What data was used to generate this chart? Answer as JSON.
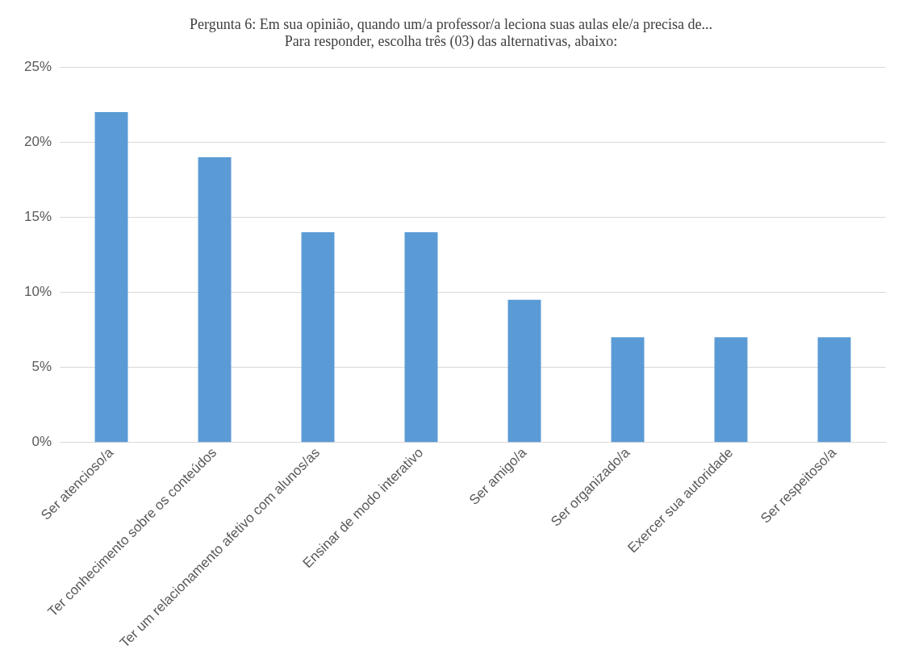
{
  "chart_data": {
    "type": "bar",
    "title": [
      "Pergunta 6: Em sua opinião, quando um/a professor/a leciona suas aulas ele/a precisa de...",
      "Para responder, escolha três (03) das alternativas, abaixo:"
    ],
    "categories": [
      "Ser atencioso/a",
      "Ter conhecimento sobre os conteúdos",
      "Ter um relacionamento afetivo com alunos/as",
      "Ensinar de modo interativo",
      "Ser amigo/a",
      "Ser organizado/a",
      "Exercer sua autoridade",
      "Ser respeitoso/a"
    ],
    "values": [
      22,
      19,
      14,
      14,
      9.5,
      7,
      7,
      7
    ],
    "color": "#5b9bd5",
    "ylim": [
      0,
      25
    ],
    "yticks": [
      {
        "value": 0,
        "label": "0%"
      },
      {
        "value": 5,
        "label": "5%"
      },
      {
        "value": 10,
        "label": "10%"
      },
      {
        "value": 15,
        "label": "15%"
      },
      {
        "value": 20,
        "label": "20%"
      },
      {
        "value": 25,
        "label": "25%"
      }
    ],
    "grid": "y",
    "legend": false
  }
}
